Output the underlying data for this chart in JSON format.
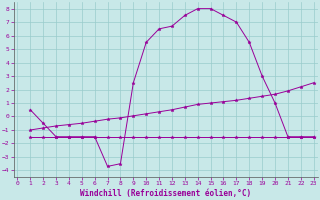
{
  "xlabel": "Windchill (Refroidissement éolien,°C)",
  "xlim": [
    -0.3,
    23.3
  ],
  "ylim": [
    -4.5,
    8.5
  ],
  "xticks": [
    0,
    1,
    2,
    3,
    4,
    5,
    6,
    7,
    8,
    9,
    10,
    11,
    12,
    13,
    14,
    15,
    16,
    17,
    18,
    19,
    20,
    21,
    22,
    23
  ],
  "yticks": [
    -4,
    -3,
    -2,
    -1,
    0,
    1,
    2,
    3,
    4,
    5,
    6,
    7,
    8
  ],
  "bg_color": "#c8e8e8",
  "grid_color": "#99cccc",
  "line_color": "#990099",
  "line1_x": [
    1,
    2,
    3,
    4,
    5,
    6,
    7,
    8,
    9,
    10,
    11,
    12,
    13,
    14,
    15,
    16,
    17,
    18,
    19,
    20,
    21,
    22,
    23
  ],
  "line1_y": [
    0.5,
    -0.5,
    -1.5,
    -1.5,
    -1.5,
    -1.5,
    -3.7,
    -3.5,
    2.5,
    5.5,
    6.5,
    6.7,
    7.5,
    8.0,
    8.0,
    7.5,
    7.0,
    5.5,
    3.0,
    1.0,
    -1.5,
    -1.5,
    -1.5
  ],
  "line2_x": [
    1,
    2,
    3,
    4,
    5,
    6,
    7,
    8,
    9,
    10,
    11,
    12,
    13,
    14,
    15,
    16,
    17,
    18,
    19,
    20,
    21,
    22,
    23
  ],
  "line2_y": [
    -1.0,
    -0.85,
    -0.7,
    -0.6,
    -0.5,
    -0.35,
    -0.2,
    -0.1,
    0.05,
    0.2,
    0.35,
    0.5,
    0.7,
    0.9,
    1.0,
    1.1,
    1.2,
    1.35,
    1.5,
    1.65,
    1.9,
    2.2,
    2.5
  ],
  "line3_x": [
    1,
    2,
    3,
    4,
    5,
    6,
    7,
    8,
    9,
    10,
    11,
    12,
    13,
    14,
    15,
    16,
    17,
    18,
    19,
    20,
    21,
    22,
    23
  ],
  "line3_y": [
    -1.5,
    -1.5,
    -1.5,
    -1.5,
    -1.5,
    -1.5,
    -1.5,
    -1.5,
    -1.5,
    -1.5,
    -1.5,
    -1.5,
    -1.5,
    -1.5,
    -1.5,
    -1.5,
    -1.5,
    -1.5,
    -1.5,
    -1.5,
    -1.5,
    -1.5,
    -1.5
  ],
  "tick_fontsize": 4.5,
  "xlabel_fontsize": 5.5
}
